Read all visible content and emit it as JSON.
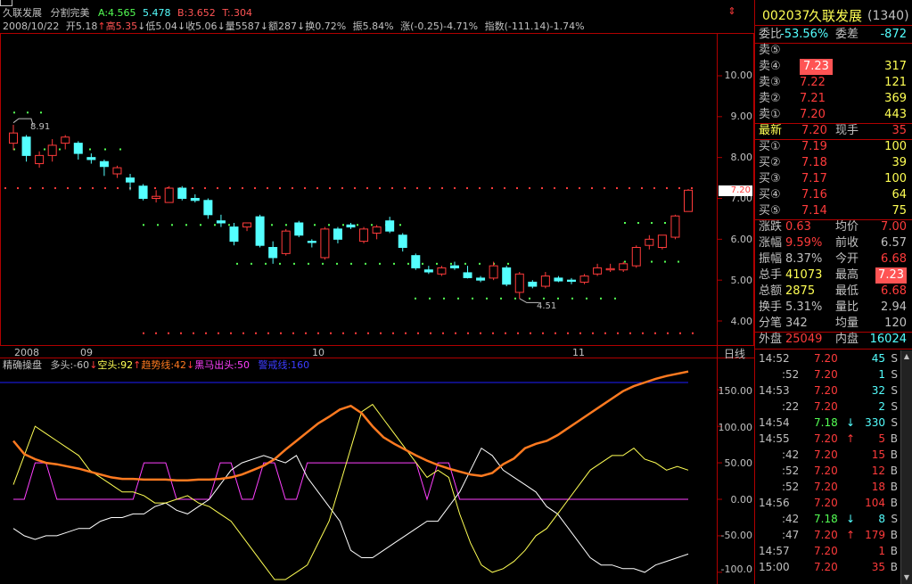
{
  "stock": {
    "name": "久联发展",
    "mode": "分割完美",
    "a_label": "A:",
    "a_value1": "4.565",
    "a_value2": "5.478",
    "b_label": "B:",
    "b_value": "3.652",
    "t_label": "T:",
    "t_value": ".304"
  },
  "ohlc_bar": {
    "date": "2008/10/22",
    "open": "开5.18",
    "high": "高5.35",
    "low": "低5.04",
    "close": "收5.06",
    "volume": "量5587",
    "amount": "额287",
    "turnover": "换0.72%",
    "amplitude": "振5.84%",
    "change": "涨(-0.25)-4.71%",
    "index": "指数(-111.14)-1.74%"
  },
  "price_axis": [
    "10.00",
    "9.00",
    "8.00",
    "7.00",
    "6.00",
    "5.00",
    "4.00"
  ],
  "last_price_tag": "7.20",
  "annotations": {
    "high_marker": "8.91",
    "low_marker": "4.51"
  },
  "time_axis": [
    "2008",
    "09",
    "10",
    "11"
  ],
  "period_label": "日线",
  "indicator": {
    "name": "精确操盘",
    "long": "多头:-60",
    "short": "空头:92",
    "trend": "趋势线:42",
    "darkhorse": "黑马出头:50",
    "alert": "警戒线:160"
  },
  "indicator_axis": [
    "150.00",
    "100.00",
    "50.00",
    "0.00",
    "-50.00",
    "-100.0"
  ],
  "quote": {
    "code": "002037",
    "name": "久联发展",
    "num": "(1340)",
    "ratio_label": "委比",
    "ratio_value": "-53.56%",
    "diff_label": "委差",
    "diff_value": "-872",
    "asks": [
      {
        "label": "卖⑤",
        "price": "",
        "vol": ""
      },
      {
        "label": "卖④",
        "price": "7.23",
        "vol": "317"
      },
      {
        "label": "卖③",
        "price": "7.22",
        "vol": "121"
      },
      {
        "label": "卖②",
        "price": "7.21",
        "vol": "369"
      },
      {
        "label": "卖①",
        "price": "7.20",
        "vol": "443"
      }
    ],
    "latest_label": "最新",
    "latest_price": "7.20",
    "now_label": "现手",
    "now_vol": "35",
    "bids": [
      {
        "label": "买①",
        "price": "7.19",
        "vol": "100"
      },
      {
        "label": "买②",
        "price": "7.18",
        "vol": "39"
      },
      {
        "label": "买③",
        "price": "7.17",
        "vol": "100"
      },
      {
        "label": "买④",
        "price": "7.16",
        "vol": "64"
      },
      {
        "label": "买⑤",
        "price": "7.14",
        "vol": "75"
      }
    ],
    "stats": [
      {
        "l1": "涨跌",
        "v1": "0.63",
        "l2": "均价",
        "v2": "7.00"
      },
      {
        "l1": "涨幅",
        "v1": "9.59%",
        "l2": "前收",
        "v2": "6.57"
      },
      {
        "l1": "振幅",
        "v1": "8.37%",
        "l2": "今开",
        "v2": "6.68"
      },
      {
        "l1": "总手",
        "v1": "41073",
        "l2": "最高",
        "v2": "7.23"
      },
      {
        "l1": "总额",
        "v1": "2875",
        "l2": "最低",
        "v2": "6.68"
      },
      {
        "l1": "换手",
        "v1": "5.31%",
        "l2": "量比",
        "v2": "2.94"
      },
      {
        "l1": "分笔",
        "v1": "342",
        "l2": "均量",
        "v2": "120"
      }
    ],
    "outer_label": "外盘",
    "outer_value": "25049",
    "inner_label": "内盘",
    "inner_value": "16024"
  },
  "ticks": [
    {
      "time": "14:52",
      "price": "7.20",
      "arrow": "",
      "vol": "45",
      "side": "S"
    },
    {
      "time": ":52",
      "price": "7.20",
      "arrow": "",
      "vol": "1",
      "side": "S"
    },
    {
      "time": "14:53",
      "price": "7.20",
      "arrow": "",
      "vol": "32",
      "side": "S"
    },
    {
      "time": ":22",
      "price": "7.20",
      "arrow": "",
      "vol": "2",
      "side": "S"
    },
    {
      "time": "14:54",
      "price": "7.18",
      "arrow": "↓",
      "vol": "330",
      "side": "S"
    },
    {
      "time": "14:55",
      "price": "7.20",
      "arrow": "↑",
      "vol": "5",
      "side": "B"
    },
    {
      "time": ":42",
      "price": "7.20",
      "arrow": "",
      "vol": "15",
      "side": "B"
    },
    {
      "time": ":52",
      "price": "7.20",
      "arrow": "",
      "vol": "12",
      "side": "B"
    },
    {
      "time": ":52",
      "price": "7.20",
      "arrow": "",
      "vol": "18",
      "side": "B"
    },
    {
      "time": "14:56",
      "price": "7.20",
      "arrow": "",
      "vol": "104",
      "side": "B"
    },
    {
      "time": ":42",
      "price": "7.18",
      "arrow": "↓",
      "vol": "8",
      "side": "S"
    },
    {
      "time": ":47",
      "price": "7.20",
      "arrow": "↑",
      "vol": "179",
      "side": "B"
    },
    {
      "time": "14:57",
      "price": "7.20",
      "arrow": "",
      "vol": "1",
      "side": "B"
    },
    {
      "time": "15:00",
      "price": "7.20",
      "arrow": "",
      "vol": "35",
      "side": "B"
    }
  ],
  "colors": {
    "up": "#ff3b3b",
    "down": "#54ffff",
    "yellow": "#ffff54",
    "orange": "#ff7a20",
    "magenta": "#ff40ff",
    "blue": "#1e1eff",
    "frame": "#b00000"
  },
  "candles": [
    {
      "o": 8.35,
      "h": 8.8,
      "l": 8.18,
      "c": 8.6
    },
    {
      "o": 8.5,
      "h": 8.55,
      "l": 7.9,
      "c": 8.05
    },
    {
      "o": 7.85,
      "h": 8.15,
      "l": 7.75,
      "c": 8.05
    },
    {
      "o": 8.05,
      "h": 8.45,
      "l": 7.9,
      "c": 8.3
    },
    {
      "o": 8.35,
      "h": 8.55,
      "l": 8.2,
      "c": 8.5
    },
    {
      "o": 8.35,
      "h": 8.4,
      "l": 7.95,
      "c": 8.1
    },
    {
      "o": 8.0,
      "h": 8.1,
      "l": 7.85,
      "c": 7.95
    },
    {
      "o": 7.9,
      "h": 7.95,
      "l": 7.55,
      "c": 7.78
    },
    {
      "o": 7.6,
      "h": 7.8,
      "l": 7.5,
      "c": 7.75
    },
    {
      "o": 7.5,
      "h": 7.6,
      "l": 7.2,
      "c": 7.4
    },
    {
      "o": 7.3,
      "h": 7.35,
      "l": 6.95,
      "c": 7.0
    },
    {
      "o": 7.0,
      "h": 7.2,
      "l": 6.9,
      "c": 7.05
    },
    {
      "o": 6.9,
      "h": 7.3,
      "l": 6.9,
      "c": 7.25
    },
    {
      "o": 7.25,
      "h": 7.3,
      "l": 6.95,
      "c": 7.0
    },
    {
      "o": 7.0,
      "h": 7.1,
      "l": 6.9,
      "c": 6.95
    },
    {
      "o": 6.95,
      "h": 7.0,
      "l": 6.5,
      "c": 6.6
    },
    {
      "o": 6.45,
      "h": 6.6,
      "l": 6.3,
      "c": 6.4
    },
    {
      "o": 6.3,
      "h": 6.4,
      "l": 5.85,
      "c": 5.95
    },
    {
      "o": 6.3,
      "h": 6.4,
      "l": 6.2,
      "c": 6.4
    },
    {
      "o": 6.55,
      "h": 6.6,
      "l": 5.8,
      "c": 5.85
    },
    {
      "o": 5.8,
      "h": 5.95,
      "l": 5.4,
      "c": 5.55
    },
    {
      "o": 5.65,
      "h": 6.25,
      "l": 5.6,
      "c": 6.2
    },
    {
      "o": 6.4,
      "h": 6.45,
      "l": 6.05,
      "c": 6.1
    },
    {
      "o": 5.95,
      "h": 6.0,
      "l": 5.8,
      "c": 5.92
    },
    {
      "o": 5.55,
      "h": 6.3,
      "l": 5.5,
      "c": 6.25
    },
    {
      "o": 6.25,
      "h": 6.3,
      "l": 5.9,
      "c": 6.0
    },
    {
      "o": 6.35,
      "h": 6.4,
      "l": 6.25,
      "c": 6.3
    },
    {
      "o": 5.95,
      "h": 6.3,
      "l": 5.9,
      "c": 6.25
    },
    {
      "o": 6.15,
      "h": 6.35,
      "l": 6.0,
      "c": 6.3
    },
    {
      "o": 6.45,
      "h": 6.55,
      "l": 6.15,
      "c": 6.2
    },
    {
      "o": 6.1,
      "h": 6.15,
      "l": 5.7,
      "c": 5.8
    },
    {
      "o": 5.6,
      "h": 5.65,
      "l": 5.25,
      "c": 5.3
    },
    {
      "o": 5.25,
      "h": 5.35,
      "l": 5.15,
      "c": 5.2
    },
    {
      "o": 5.15,
      "h": 5.35,
      "l": 5.1,
      "c": 5.3
    },
    {
      "o": 5.35,
      "h": 5.45,
      "l": 5.25,
      "c": 5.3
    },
    {
      "o": 5.18,
      "h": 5.35,
      "l": 5.04,
      "c": 5.06
    },
    {
      "o": 5.05,
      "h": 5.1,
      "l": 4.95,
      "c": 5.0
    },
    {
      "o": 5.05,
      "h": 5.45,
      "l": 5.0,
      "c": 5.35
    },
    {
      "o": 5.3,
      "h": 5.35,
      "l": 4.85,
      "c": 4.9
    },
    {
      "o": 4.7,
      "h": 5.2,
      "l": 4.55,
      "c": 5.15
    },
    {
      "o": 4.95,
      "h": 5.0,
      "l": 4.8,
      "c": 4.85
    },
    {
      "o": 4.85,
      "h": 5.2,
      "l": 4.8,
      "c": 5.1
    },
    {
      "o": 5.05,
      "h": 5.1,
      "l": 4.95,
      "c": 4.98
    },
    {
      "o": 5.0,
      "h": 5.05,
      "l": 4.9,
      "c": 4.97
    },
    {
      "o": 4.95,
      "h": 5.15,
      "l": 4.9,
      "c": 5.1
    },
    {
      "o": 5.15,
      "h": 5.4,
      "l": 5.1,
      "c": 5.3
    },
    {
      "o": 5.25,
      "h": 5.4,
      "l": 5.2,
      "c": 5.28
    },
    {
      "o": 5.25,
      "h": 5.45,
      "l": 5.2,
      "c": 5.4
    },
    {
      "o": 5.35,
      "h": 5.85,
      "l": 5.3,
      "c": 5.8
    },
    {
      "o": 5.85,
      "h": 6.1,
      "l": 5.75,
      "c": 6.0
    },
    {
      "o": 5.8,
      "h": 6.1,
      "l": 5.75,
      "c": 6.1
    },
    {
      "o": 6.05,
      "h": 6.6,
      "l": 6.0,
      "c": 6.57
    },
    {
      "o": 6.68,
      "h": 7.23,
      "l": 6.68,
      "c": 7.2
    }
  ],
  "trend_line": [
    80,
    62,
    55,
    50,
    48,
    45,
    42,
    38,
    34,
    30,
    28,
    28,
    27,
    27,
    27,
    26,
    26,
    27,
    27,
    28,
    30,
    34,
    40,
    46,
    55,
    68,
    80,
    92,
    104,
    113,
    123,
    128,
    118,
    100,
    85,
    76,
    68,
    60,
    53,
    47,
    42,
    38,
    34,
    32,
    36,
    48,
    56,
    70,
    76,
    80,
    88,
    98,
    108,
    118,
    128,
    138,
    148,
    155,
    160,
    165,
    169,
    172,
    175
  ],
  "darkhorse_line": [
    0,
    0,
    50,
    50,
    0,
    0,
    0,
    0,
    0,
    0,
    0,
    0,
    50,
    50,
    50,
    0,
    0,
    0,
    0,
    50,
    50,
    0,
    0,
    50,
    50,
    0,
    0,
    50,
    50,
    50,
    50,
    50,
    50,
    50,
    50,
    50,
    50,
    50,
    0,
    50,
    50,
    0,
    0,
    0,
    0,
    0,
    0,
    0,
    0,
    0,
    0,
    0,
    0,
    0,
    0,
    0,
    0,
    0,
    0,
    0,
    0,
    0,
    0
  ],
  "long_line": [
    -40,
    -50,
    -55,
    -50,
    -50,
    -45,
    -40,
    -40,
    -30,
    -25,
    -25,
    -20,
    -20,
    -10,
    -5,
    -15,
    -20,
    -10,
    0,
    20,
    40,
    50,
    55,
    60,
    55,
    50,
    60,
    30,
    10,
    -10,
    -30,
    -70,
    -80,
    -80,
    -70,
    -60,
    -50,
    -40,
    -30,
    -30,
    -10,
    10,
    40,
    70,
    60,
    40,
    30,
    20,
    10,
    -10,
    -20,
    -40,
    -60,
    -80,
    -90,
    -90,
    -95,
    -95,
    -100,
    -90,
    -85,
    -80,
    -75
  ],
  "short_line": [
    20,
    60,
    100,
    90,
    80,
    70,
    60,
    40,
    30,
    20,
    10,
    10,
    5,
    -5,
    -5,
    0,
    5,
    -5,
    -10,
    -20,
    -30,
    -50,
    -70,
    -90,
    -110,
    -110,
    -100,
    -90,
    -60,
    -30,
    20,
    70,
    120,
    130,
    110,
    90,
    70,
    50,
    30,
    40,
    30,
    -20,
    -60,
    -90,
    -100,
    -95,
    -85,
    -70,
    -50,
    -40,
    -20,
    0,
    20,
    40,
    50,
    60,
    60,
    70,
    55,
    50,
    40,
    45,
    40
  ]
}
